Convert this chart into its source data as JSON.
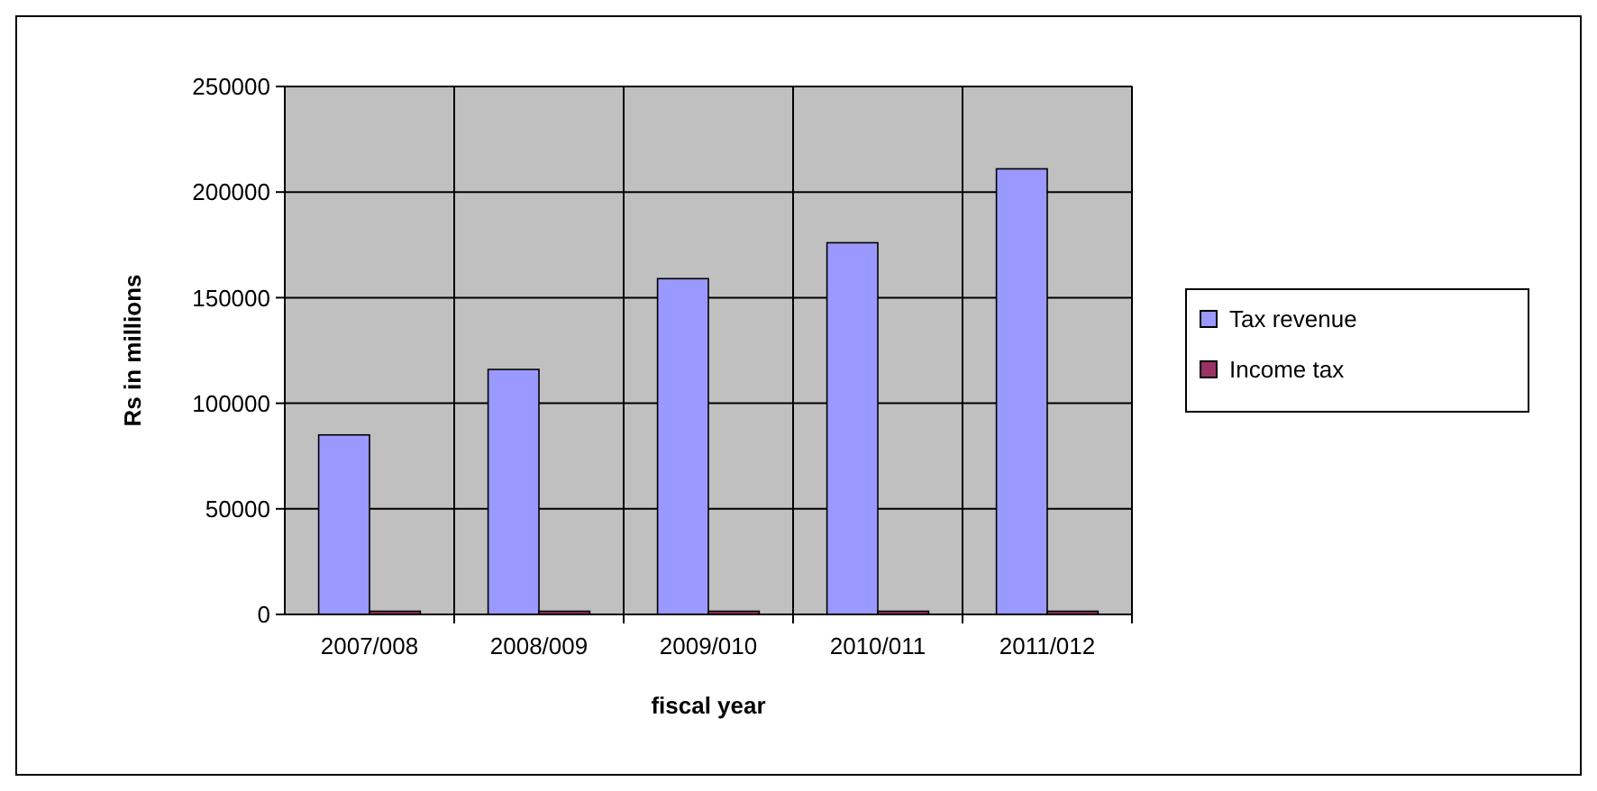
{
  "chart_data": {
    "type": "bar",
    "xlabel": "fiscal year",
    "ylabel": "Rs in millions",
    "categories": [
      "2007/008",
      "2008/009",
      "2009/010",
      "2010/011",
      "2011/012"
    ],
    "series": [
      {
        "name": "Tax revenue",
        "color": "#9999ff",
        "values": [
          85000,
          116000,
          159000,
          176000,
          211000
        ]
      },
      {
        "name": "Income tax",
        "color": "#993366",
        "values": [
          1500,
          1500,
          1500,
          1500,
          1500
        ]
      }
    ],
    "ylim": [
      0,
      250000
    ],
    "yticks": [
      0,
      50000,
      100000,
      150000,
      200000,
      250000
    ],
    "grid": true,
    "legend": "right"
  }
}
